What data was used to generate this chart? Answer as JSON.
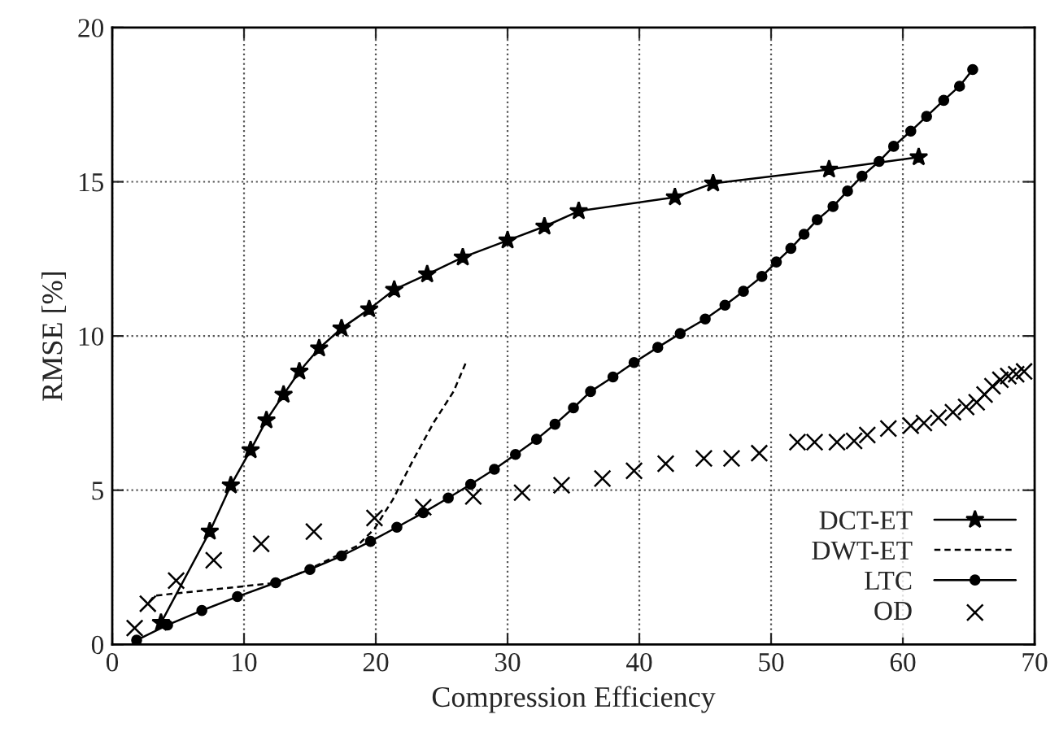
{
  "chart_data": {
    "type": "line",
    "xlabel": "Compression Efficiency",
    "ylabel": "RMSE [%]",
    "xlim": [
      0,
      70
    ],
    "xticks": [
      0,
      10,
      20,
      30,
      40,
      50,
      60,
      70
    ],
    "ylim": [
      0,
      20
    ],
    "yticks": [
      0,
      5,
      10,
      15,
      20
    ],
    "grid": true,
    "legend": "bottom right",
    "series": [
      {
        "name": "DCT-ET",
        "color": "#000000",
        "marker": "star",
        "line_style": "solid",
        "x": [
          3.7,
          7.4,
          9.0,
          10.5,
          11.7,
          13.0,
          14.2,
          15.7,
          17.4,
          19.5,
          21.4,
          23.9,
          26.6,
          30.0,
          32.8,
          35.4,
          42.7,
          45.6,
          54.4,
          61.2
        ],
        "values": [
          0.7,
          3.66,
          5.16,
          6.3,
          7.27,
          8.1,
          8.85,
          9.6,
          10.25,
          10.87,
          11.5,
          12.0,
          12.55,
          13.1,
          13.55,
          14.05,
          14.5,
          14.95,
          15.4,
          15.8
        ]
      },
      {
        "name": "DWT-ET",
        "color": "#000000",
        "marker": "none",
        "line_style": "dashed",
        "x": [
          2.8,
          3.2,
          12.5,
          14.9,
          17.0,
          18.6,
          19.9,
          21.3,
          22.8,
          24.4,
          25.9,
          26.9
        ],
        "values": [
          1.37,
          1.58,
          2.0,
          2.43,
          2.87,
          3.2,
          3.75,
          4.7,
          5.95,
          7.2,
          8.2,
          9.2
        ]
      },
      {
        "name": "LTC",
        "color": "#000000",
        "marker": "circle",
        "line_style": "solid",
        "x": [
          1.85,
          4.2,
          6.8,
          9.5,
          12.4,
          15.0,
          17.4,
          19.6,
          21.6,
          23.6,
          25.5,
          27.2,
          29.0,
          30.6,
          32.2,
          33.6,
          35.0,
          36.3,
          38.0,
          39.6,
          41.4,
          43.1,
          45.0,
          46.5,
          47.9,
          49.3,
          50.4,
          51.5,
          52.5,
          53.5,
          54.7,
          55.8,
          56.9,
          58.2,
          59.3,
          60.6,
          61.8,
          63.1,
          64.3,
          65.3
        ],
        "values": [
          0.14,
          0.63,
          1.1,
          1.55,
          2.0,
          2.43,
          2.87,
          3.34,
          3.8,
          4.27,
          4.75,
          5.19,
          5.68,
          6.16,
          6.65,
          7.14,
          7.67,
          8.2,
          8.67,
          9.14,
          9.63,
          10.08,
          10.55,
          11.0,
          11.45,
          11.93,
          12.4,
          12.84,
          13.3,
          13.77,
          14.2,
          14.7,
          15.18,
          15.66,
          16.15,
          16.64,
          17.12,
          17.64,
          18.1,
          18.64
        ]
      },
      {
        "name": "OD",
        "type": "scatter",
        "color": "#000000",
        "marker": "cross",
        "x": [
          1.7,
          2.7,
          4.85,
          7.7,
          11.3,
          15.3,
          19.9,
          23.6,
          27.4,
          31.1,
          34.1,
          37.2,
          39.6,
          42.0,
          44.9,
          47.0,
          49.1,
          52.0,
          53.3,
          55.0,
          56.3,
          57.3,
          58.9,
          60.6,
          61.6,
          62.7,
          63.8,
          64.8,
          65.6,
          66.2,
          66.8,
          67.4,
          68.0,
          68.6,
          69.2
        ],
        "values": [
          0.53,
          1.32,
          2.07,
          2.73,
          3.26,
          3.66,
          4.1,
          4.45,
          4.8,
          4.92,
          5.16,
          5.38,
          5.63,
          5.86,
          6.03,
          6.03,
          6.2,
          6.56,
          6.56,
          6.56,
          6.6,
          6.79,
          7.0,
          7.09,
          7.18,
          7.35,
          7.53,
          7.7,
          7.85,
          8.1,
          8.37,
          8.58,
          8.7,
          8.76,
          8.85
        ]
      }
    ]
  }
}
